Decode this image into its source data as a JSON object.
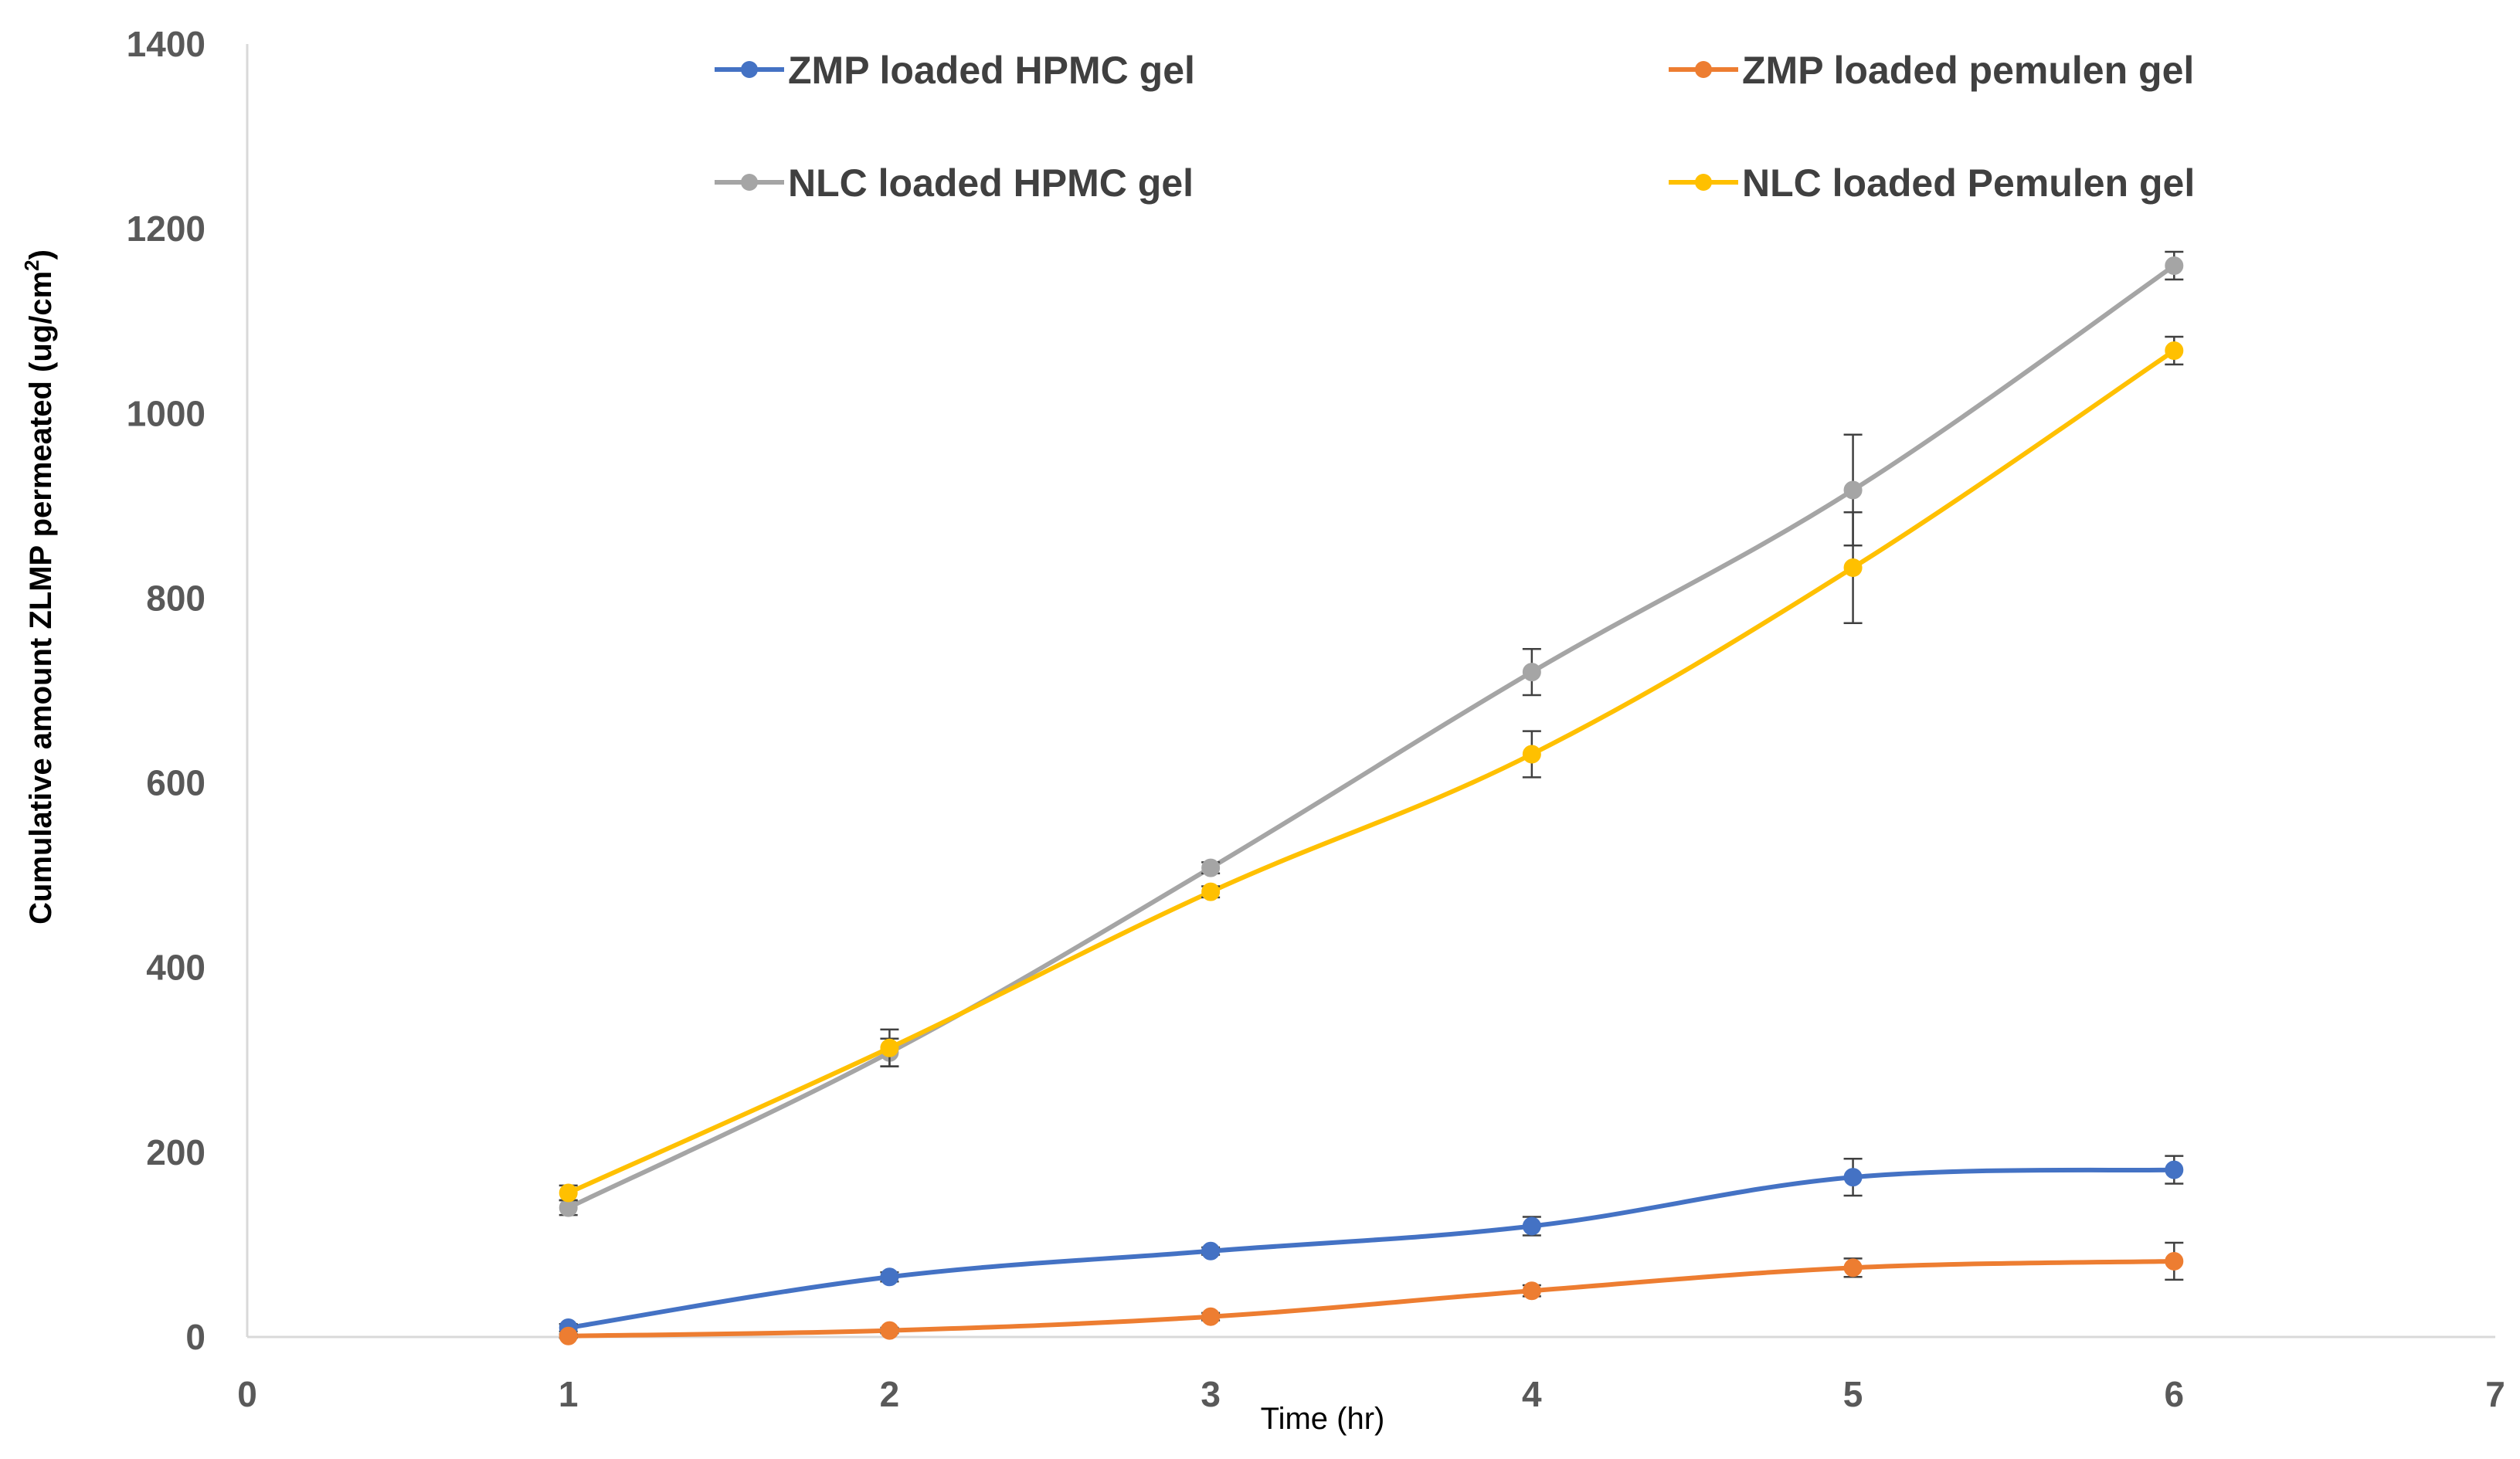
{
  "chart_data": {
    "type": "line",
    "title": "",
    "xlabel": "Time (hr)",
    "ylabel": "Cumulative amount ZLMP permeated (ug/cm",
    "ylabel_sup": "2",
    "ylabel_end": ")",
    "xlim": [
      0,
      7
    ],
    "ylim": [
      0,
      1400
    ],
    "xticks": [
      "0",
      "1",
      "2",
      "3",
      "4",
      "5",
      "6",
      "7"
    ],
    "yticks": [
      "0",
      "200",
      "400",
      "600",
      "800",
      "1000",
      "1200",
      "1400"
    ],
    "grid": false,
    "legend_position": "top",
    "x": [
      1,
      2,
      3,
      4,
      5,
      6
    ],
    "series": [
      {
        "name": "ZMP loaded HPMC gel",
        "color": "#4472C4",
        "values": [
          10,
          65,
          93,
          120,
          173,
          181
        ],
        "errors": [
          4,
          5,
          4,
          10,
          20,
          15
        ]
      },
      {
        "name": "ZMP loaded pemulen gel",
        "color": "#ED7D31",
        "values": [
          1,
          7,
          22,
          50,
          75,
          82
        ],
        "errors": [
          2,
          3,
          4,
          6,
          10,
          20
        ]
      },
      {
        "name": "NLC loaded HPMC gel",
        "color": "#A5A5A5",
        "values": [
          140,
          308,
          508,
          720,
          917,
          1160
        ],
        "errors": [
          8,
          15,
          6,
          25,
          60,
          15
        ]
      },
      {
        "name": "NLC loaded Pemulen gel",
        "color": "#FFC000",
        "values": [
          156,
          313,
          482,
          631,
          833,
          1068
        ],
        "errors": [
          8,
          20,
          6,
          25,
          60,
          15
        ]
      }
    ]
  }
}
